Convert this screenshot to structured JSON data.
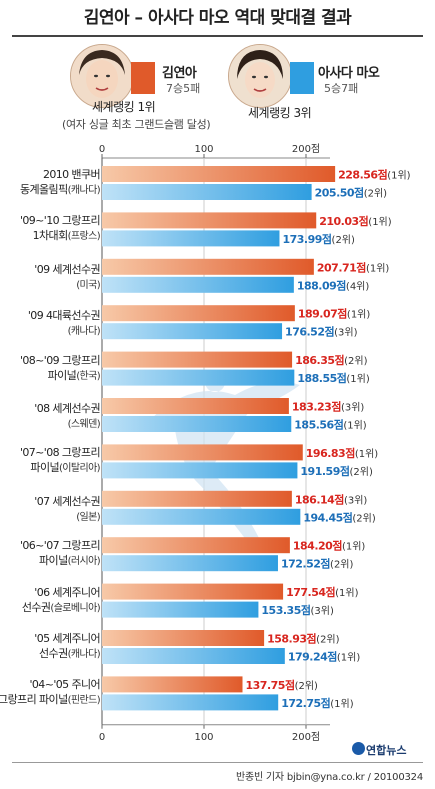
{
  "title": "김연아 – 아사다 마오 역대 맞대결 결과",
  "legend": {
    "kim": {
      "name": "김연아",
      "record": "7승5패",
      "rank": "세계랭킹 1위",
      "note": "(여자 싱글 최초 그랜드슬램 달성)",
      "color": "#e05a2a"
    },
    "asada": {
      "name": "아사다 마오",
      "record": "5승7패",
      "rank": "세계랭킹 3위",
      "color": "#2f9ee0"
    }
  },
  "categories": [
    {
      "line1": "2010 밴쿠버",
      "line2": "동계올림픽",
      "loc": "(캐나다)"
    },
    {
      "line1": "'09~'10 그랑프리",
      "line2": "1차대회",
      "loc": "(프랑스)"
    },
    {
      "line1": "'09 세계선수권",
      "line2": "",
      "loc": "(미국)"
    },
    {
      "line1": "'09 4대륙선수권",
      "line2": "",
      "loc": "(캐나다)"
    },
    {
      "line1": "'08~'09 그랑프리",
      "line2": "파이널",
      "loc": "(한국)"
    },
    {
      "line1": "'08 세계선수권",
      "line2": "",
      "loc": "(스웨덴)"
    },
    {
      "line1": "'07~'08 그랑프리",
      "line2": "파이널",
      "loc": "(이탈리아)"
    },
    {
      "line1": "'07 세계선수권",
      "line2": "",
      "loc": "(일본)"
    },
    {
      "line1": "'06~'07 그랑프리",
      "line2": "파이널",
      "loc": "(러시아)"
    },
    {
      "line1": "'06 세계주니어",
      "line2": "선수권",
      "loc": "(슬로베니아)"
    },
    {
      "line1": "'05 세계주니어",
      "line2": "선수권",
      "loc": "(캐나다)"
    },
    {
      "line1": "'04~'05 주니어",
      "line2": "그랑프리 파이널",
      "loc": "(핀란드)"
    }
  ],
  "chart_data": {
    "type": "bar",
    "orientation": "horizontal",
    "title": "김연아 – 아사다 마오 역대 맞대결 결과",
    "xlim": [
      0,
      250
    ],
    "x_ticks": [
      0,
      100,
      200
    ],
    "x_tick_labels": [
      "0",
      "100",
      "200점"
    ],
    "categories": [
      "2010 밴쿠버 동계올림픽(캐나다)",
      "'09~'10 그랑프리 1차대회(프랑스)",
      "'09 세계선수권(미국)",
      "'09 4대륙선수권(캐나다)",
      "'08~'09 그랑프리 파이널(한국)",
      "'08 세계선수권(스웨덴)",
      "'07~'08 그랑프리 파이널(이탈리아)",
      "'07 세계선수권(일본)",
      "'06~'07 그랑프리 파이널(러시아)",
      "'06 세계주니어 선수권(슬로베니아)",
      "'05 세계주니어 선수권(캐나다)",
      "'04~'05 주니어 그랑프리 파이널(핀란드)"
    ],
    "series": [
      {
        "name": "김연아",
        "color": "#e05a2a",
        "values": [
          228.56,
          210.03,
          207.71,
          189.07,
          186.35,
          183.23,
          196.83,
          186.14,
          184.2,
          177.54,
          158.93,
          137.75
        ],
        "score_labels": [
          "228.56점",
          "210.03점",
          "207.71점",
          "189.07점",
          "186.35점",
          "183.23점",
          "196.83점",
          "186.14점",
          "184.20점",
          "177.54점",
          "158.93점",
          "137.75점"
        ],
        "ranks": [
          "(1위)",
          "(1위)",
          "(1위)",
          "(1위)",
          "(2위)",
          "(3위)",
          "(1위)",
          "(3위)",
          "(1위)",
          "(1위)",
          "(2위)",
          "(2위)"
        ]
      },
      {
        "name": "아사다 마오",
        "color": "#2f9ee0",
        "values": [
          205.5,
          173.99,
          188.09,
          176.52,
          188.55,
          185.56,
          191.59,
          194.45,
          172.52,
          153.35,
          179.24,
          172.75
        ],
        "score_labels": [
          "205.50점",
          "173.99점",
          "188.09점",
          "176.52점",
          "188.55점",
          "185.56점",
          "191.59점",
          "194.45점",
          "172.52점",
          "153.35점",
          "179.24점",
          "172.75점"
        ],
        "ranks": [
          "(2위)",
          "(2위)",
          "(4위)",
          "(3위)",
          "(1위)",
          "(1위)",
          "(2위)",
          "(2위)",
          "(2위)",
          "(3위)",
          "(1위)",
          "(1위)"
        ]
      }
    ]
  },
  "footer": {
    "credit": "반종빈 기자 bjbin@yna.co.kr / 20100324",
    "logo": "연합뉴스"
  }
}
